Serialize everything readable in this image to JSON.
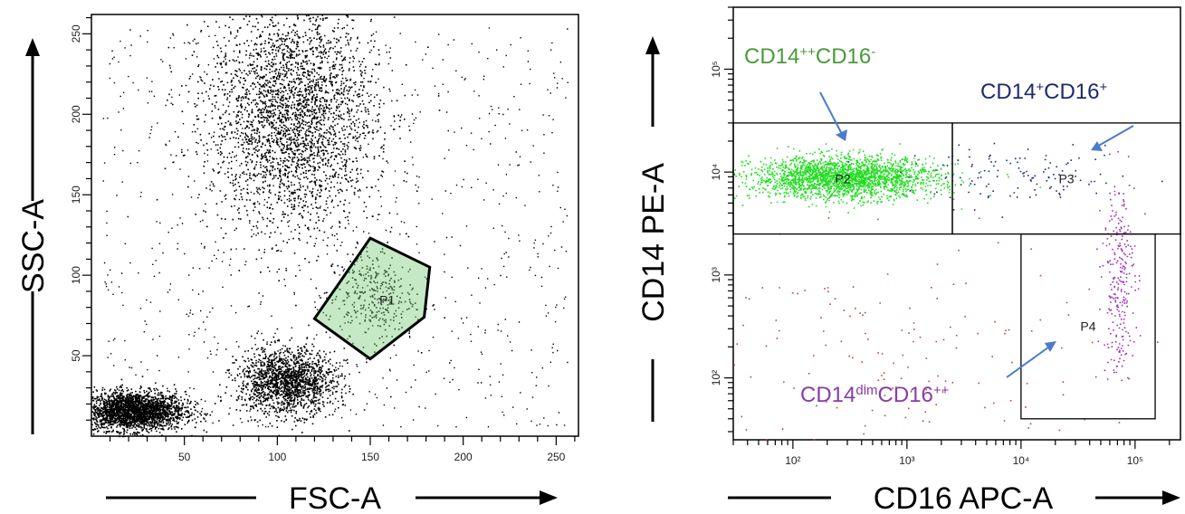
{
  "chart_data": [
    {
      "type": "scatter",
      "xlabel": "FSC-A",
      "ylabel": "SSC-A",
      "xlim": [
        0,
        262
      ],
      "ylim": [
        0,
        262
      ],
      "x_ticks": [
        50,
        100,
        150,
        200,
        250
      ],
      "y_ticks": [
        50,
        100,
        150,
        200,
        250
      ],
      "x_tick_labels": [
        "50",
        "100",
        "150",
        "200",
        "250"
      ],
      "y_tick_labels": [
        "50",
        "100",
        "150",
        "200",
        "250"
      ],
      "point_color": "#000000",
      "gate_color": "#7ccf7c",
      "clusters": [
        {
          "cx": 22,
          "cy": 16,
          "sx": 14,
          "sy": 6,
          "n": 2600
        },
        {
          "cx": 105,
          "cy": 34,
          "sx": 13,
          "sy": 10,
          "n": 1700
        },
        {
          "cx": 108,
          "cy": 200,
          "sx": 22,
          "sy": 35,
          "n": 2900
        },
        {
          "cx": 150,
          "cy": 88,
          "sx": 12,
          "sy": 14,
          "n": 320
        }
      ],
      "gates": [
        {
          "name": "P1",
          "polygon": [
            [
              120,
              73
            ],
            [
              150,
              123
            ],
            [
              182,
              105
            ],
            [
              179,
              74
            ],
            [
              150,
              48
            ]
          ]
        }
      ]
    },
    {
      "type": "scatter",
      "xlabel": "CD16 APC-A",
      "ylabel": "CD14 PE-A",
      "xscale": "log",
      "yscale": "log",
      "xlim": [
        30,
        250000
      ],
      "ylim": [
        25,
        400000
      ],
      "x_ticks": [
        100,
        1000,
        10000,
        100000
      ],
      "y_ticks": [
        100,
        1000,
        10000,
        100000
      ],
      "x_tick_labels": [
        "10²",
        "10³",
        "10⁴",
        "10⁵"
      ],
      "y_tick_labels": [
        "10²",
        "10³",
        "10⁴",
        "10⁵"
      ],
      "populations": [
        {
          "gate": "P2",
          "color": "#22dd22",
          "cx_log10": 2.45,
          "cy_log10": 3.95,
          "sx": 0.4,
          "sy": 0.1,
          "n": 2400
        },
        {
          "gate": "P3",
          "color": "#1f2a7a",
          "cx_log10": 4.0,
          "cy_log10": 3.95,
          "sx": 0.5,
          "sy": 0.13,
          "n": 120
        },
        {
          "gate": "P4",
          "color": "#9a35b8",
          "cx_log10": 4.85,
          "cy_log10": 3.0,
          "sx": 0.07,
          "sy": 0.5,
          "n": 260
        },
        {
          "gate": "other",
          "color": "#b04a4a",
          "cx_log10": 2.9,
          "cy_log10": 2.2,
          "sx": 0.9,
          "sy": 0.6,
          "n": 160
        }
      ],
      "gates": [
        {
          "name": "P2",
          "x_range": [
            30,
            2500
          ],
          "y_range": [
            2500,
            30000
          ]
        },
        {
          "name": "P3",
          "x_range": [
            2500,
            250000
          ],
          "y_range": [
            2500,
            30000
          ]
        },
        {
          "name": "P4",
          "x_range": [
            10000,
            150000
          ],
          "y_range": [
            40,
            2500
          ]
        }
      ],
      "annotations": [
        {
          "main1": "CD14",
          "sup1": "++",
          "main2": "CD16",
          "sup2": "-",
          "color": "#4a9a3a"
        },
        {
          "main1": "CD14",
          "sup1": "+",
          "main2": "CD16",
          "sup2": "+",
          "color": "#1f2a6a"
        },
        {
          "main1": "CD14",
          "sup1": "dim",
          "main2": "CD16",
          "sup2": "++",
          "color": "#8a3aaa"
        }
      ],
      "arrow_color": "#4a7cc9"
    }
  ]
}
